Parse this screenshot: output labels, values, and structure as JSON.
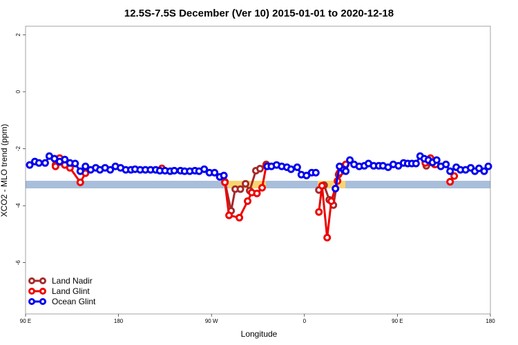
{
  "chart_data": {
    "type": "line",
    "title": "12.5S-7.5S December (Ver 10)   2015-01-01 to 2020-12-18",
    "x_label": "Longitude",
    "y_label": "XCO2 - MLO trend (ppm)",
    "xlim": [
      90,
      540
    ],
    "xticks": [
      {
        "value": 90,
        "label": "90 E"
      },
      180,
      {
        "value": 270,
        "label": "90 W"
      },
      {
        "value": 360,
        "label": "0"
      },
      {
        "value": 450,
        "label": "90 E"
      },
      {
        "value": 540,
        "label": "180"
      }
    ],
    "ylim": [
      -7.8,
      2.3
    ],
    "yticks": [
      2,
      0,
      -2,
      -4,
      -6
    ],
    "legend": "bottom-left",
    "series": [
      {
        "name": "Land Nadir",
        "color": "#a52a2a",
        "x": [
          119,
          128,
          133,
          200,
          283,
          289,
          293,
          298,
          303,
          307,
          313,
          317,
          323,
          350,
          374,
          379,
          384,
          388,
          393,
          396,
          450,
          478,
          486
        ],
        "values": [
          -2.57,
          -2.55,
          -2.62,
          null,
          -3.16,
          -4.18,
          -3.42,
          -3.42,
          -3.23,
          -3.47,
          -2.77,
          -2.7,
          -2.55,
          null,
          -3.45,
          -3.28,
          -3.79,
          -3.98,
          -2.91,
          -2.79,
          null,
          -2.6,
          -2.55
        ]
      },
      {
        "name": "Land Glint",
        "color": "#ee0000",
        "x": [
          119,
          123,
          128,
          133,
          143,
          148,
          190,
          222,
          250,
          283,
          287,
          297,
          305,
          309,
          314,
          319,
          323,
          350,
          374,
          377,
          382,
          386,
          392,
          394,
          398,
          400,
          450,
          477,
          482,
          487,
          500,
          501,
          505
        ],
        "values": [
          -2.62,
          -2.33,
          -2.57,
          -2.67,
          -3.18,
          -2.86,
          null,
          -2.69,
          null,
          -3.18,
          -4.34,
          -4.42,
          -3.84,
          -3.54,
          -3.57,
          -3.37,
          -2.6,
          null,
          -4.22,
          -3.3,
          -5.12,
          -3.84,
          -3.13,
          -2.84,
          -2.62,
          -2.55,
          null,
          -2.5,
          -2.33,
          -2.55,
          null,
          -3.16,
          -2.96
        ]
      },
      {
        "name": "Ocean Glint",
        "color": "#0000ee",
        "x": [
          94,
          99,
          103,
          109,
          113,
          118,
          123,
          128,
          133,
          138,
          143,
          148,
          153,
          158,
          162,
          167,
          172,
          177,
          182,
          187,
          192,
          196,
          201,
          206,
          211,
          216,
          220,
          225,
          230,
          234,
          240,
          244,
          249,
          254,
          258,
          263,
          268,
          273,
          278,
          282,
          300,
          324,
          328,
          333,
          338,
          343,
          347,
          353,
          357,
          362,
          367,
          371,
          380,
          390,
          394,
          398,
          400,
          404,
          408,
          413,
          418,
          422,
          427,
          432,
          436,
          441,
          446,
          451,
          456,
          460,
          464,
          468,
          472,
          476,
          480,
          484,
          488,
          492,
          497,
          501,
          507,
          511,
          516,
          521,
          525,
          529,
          534,
          538
        ],
        "values": [
          -2.57,
          -2.45,
          -2.5,
          -2.5,
          -2.26,
          -2.35,
          -2.45,
          -2.38,
          -2.5,
          -2.52,
          -2.79,
          -2.62,
          -2.74,
          -2.67,
          -2.74,
          -2.67,
          -2.74,
          -2.62,
          -2.67,
          -2.74,
          -2.74,
          -2.72,
          -2.74,
          -2.74,
          -2.74,
          -2.74,
          -2.77,
          -2.77,
          -2.79,
          -2.77,
          -2.77,
          -2.79,
          -2.79,
          -2.77,
          -2.79,
          -2.72,
          -2.84,
          -2.84,
          -2.99,
          -2.94,
          null,
          -2.62,
          -2.62,
          -2.57,
          -2.62,
          -2.65,
          -2.72,
          -2.65,
          -2.91,
          -2.94,
          -2.84,
          -2.84,
          null,
          -3.4,
          -2.62,
          -2.74,
          -2.79,
          -2.4,
          -2.55,
          -2.62,
          -2.6,
          -2.52,
          -2.6,
          -2.6,
          -2.6,
          -2.65,
          -2.55,
          -2.6,
          -2.5,
          -2.52,
          -2.52,
          -2.52,
          -2.26,
          -2.35,
          -2.4,
          -2.48,
          -2.4,
          -2.62,
          -2.55,
          -2.79,
          -2.65,
          -2.74,
          -2.74,
          -2.67,
          -2.79,
          -2.69,
          -2.79,
          -2.62
        ]
      }
    ]
  }
}
